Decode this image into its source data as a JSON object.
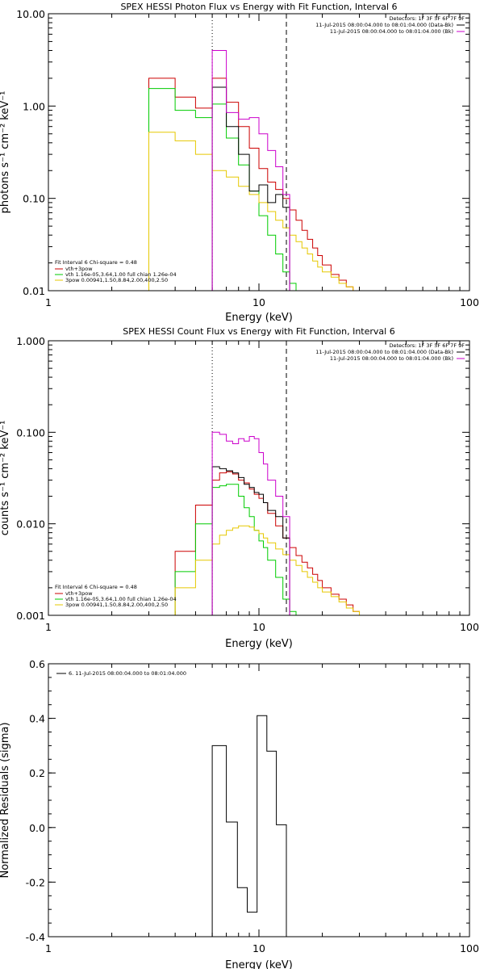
{
  "chart_data": [
    {
      "type": "line",
      "title": "SPEX HESSI Photon Flux vs Energy with Fit Function, Interval 6",
      "xlabel": "Energy (keV)",
      "ylabel": "photons s⁻¹ cm⁻² keV⁻¹",
      "xscale": "log",
      "yscale": "log",
      "xlim": [
        1,
        100
      ],
      "ylim": [
        0.01,
        10
      ],
      "xticks": [
        1,
        10,
        100
      ],
      "xtick_labels": [
        "1",
        "10",
        "100"
      ],
      "yticks": [
        0.01,
        0.1,
        1,
        10
      ],
      "ytick_labels": [
        "0.01",
        "0.10",
        "1.00",
        "10.00"
      ],
      "vlines": [
        {
          "x": 6.0,
          "style": "dotted"
        },
        {
          "x": 13.5,
          "style": "dashed"
        }
      ],
      "legend_right_title": "Detectors: 1F 3F 5F 6F 7F 9F",
      "legend_right": [
        {
          "label": "11-Jul-2015 08:00:04.000 to 08:01:04.000 (Data-Bk)",
          "color": "#000000"
        },
        {
          "label": "11-Jul-2015 08:00:04.000 to 08:01:04.000 (Bk)",
          "color": "#cc00cc"
        }
      ],
      "fit_header": "Fit Interval 6   Chi-square = 0.48",
      "legend_left": [
        {
          "label": "vth+3pow",
          "color": "#cc0000"
        },
        {
          "label": "vth 1.16e-05,3.64,1.00  full chian 1.26e-04",
          "color": "#00cc00"
        },
        {
          "label": "3pow 0.00941,1.50,8.84,2.00,400,2.50",
          "color": "#e6c800"
        }
      ],
      "series": [
        {
          "label": "vth+3pow",
          "color": "#cc0000",
          "edges": [
            3,
            4,
            5,
            6,
            7,
            8,
            9,
            10,
            11,
            12,
            13,
            14,
            15,
            16,
            17,
            18,
            19,
            20,
            22,
            24,
            26,
            28,
            30
          ],
          "values": [
            2.0,
            1.25,
            0.95,
            2.0,
            1.1,
            0.6,
            0.35,
            0.21,
            0.15,
            0.125,
            0.1,
            0.075,
            0.058,
            0.045,
            0.036,
            0.029,
            0.024,
            0.019,
            0.015,
            0.013,
            0.011,
            0.0095
          ]
        },
        {
          "label": "vth",
          "color": "#00cc00",
          "edges": [
            3,
            4,
            5,
            6,
            7,
            8,
            9,
            10,
            11,
            12,
            13,
            14,
            15
          ],
          "values": [
            1.55,
            0.9,
            0.75,
            1.05,
            0.45,
            0.23,
            0.12,
            0.065,
            0.04,
            0.025,
            0.016,
            0.012
          ]
        },
        {
          "label": "3pow",
          "color": "#e6c800",
          "edges": [
            3,
            4,
            5,
            6,
            7,
            8,
            9,
            10,
            11,
            12,
            13,
            14,
            15,
            16,
            17,
            18,
            19,
            20,
            22,
            24,
            26,
            28,
            30
          ],
          "values": [
            0.52,
            0.42,
            0.3,
            0.2,
            0.17,
            0.135,
            0.11,
            0.09,
            0.072,
            0.058,
            0.048,
            0.04,
            0.034,
            0.029,
            0.025,
            0.021,
            0.018,
            0.016,
            0.014,
            0.012,
            0.011,
            0.0095
          ]
        },
        {
          "label": "Data-Bk",
          "color": "#000000",
          "edges": [
            6,
            7,
            8,
            9,
            10,
            11,
            12,
            13,
            14
          ],
          "values": [
            1.6,
            0.6,
            0.3,
            0.12,
            0.14,
            0.09,
            0.11,
            0.08
          ]
        },
        {
          "label": "Bk",
          "color": "#cc00cc",
          "edges": [
            6,
            7,
            8,
            9,
            10,
            11,
            12,
            13,
            14
          ],
          "values": [
            4.0,
            0.85,
            0.72,
            0.75,
            0.5,
            0.33,
            0.22,
            0.11
          ]
        }
      ]
    },
    {
      "type": "line",
      "title": "SPEX HESSI Count Flux vs Energy with Fit Function, Interval 6",
      "xlabel": "Energy (keV)",
      "ylabel": "counts s⁻¹ cm⁻² keV⁻¹",
      "xscale": "log",
      "yscale": "log",
      "xlim": [
        1,
        100
      ],
      "ylim": [
        0.001,
        1
      ],
      "xticks": [
        1,
        10,
        100
      ],
      "xtick_labels": [
        "1",
        "10",
        "100"
      ],
      "yticks": [
        0.001,
        0.01,
        0.1,
        1
      ],
      "ytick_labels": [
        "0.001",
        "0.010",
        "0.100",
        "1.000"
      ],
      "vlines": [
        {
          "x": 6.0,
          "style": "dotted"
        },
        {
          "x": 13.5,
          "style": "dashed"
        }
      ],
      "legend_right_title": "Detectors: 1F 3F 5F 6F 7F 9F",
      "legend_right": [
        {
          "label": "11-Jul-2015 08:00:04.000 to 08:01:04.000 (Data-Bk)",
          "color": "#000000"
        },
        {
          "label": "11-Jul-2015 08:00:04.000 to 08:01:04.000 (Bk)",
          "color": "#cc00cc"
        }
      ],
      "fit_header": "Fit Interval 6   Chi-square = 0.48",
      "legend_left": [
        {
          "label": "vth+3pow",
          "color": "#cc0000"
        },
        {
          "label": "vth 1.16e-05,3.64,1.00  full chian 1.26e-04",
          "color": "#00cc00"
        },
        {
          "label": "3pow 0.00941,1.50,8.84,2.00,400,2.50",
          "color": "#e6c800"
        }
      ],
      "series": [
        {
          "label": "vth+3pow",
          "color": "#cc0000",
          "edges": [
            3,
            3.5,
            4,
            5,
            6,
            6.5,
            7,
            7.5,
            8,
            8.5,
            9,
            9.5,
            10,
            10.5,
            11,
            12,
            13,
            14,
            15,
            16,
            17,
            18,
            19,
            20,
            22,
            24,
            26,
            28,
            30,
            32
          ],
          "values": [
            0.0009,
            0.0009,
            0.005,
            0.016,
            0.03,
            0.036,
            0.037,
            0.035,
            0.03,
            0.028,
            0.024,
            0.021,
            0.019,
            0.017,
            0.013,
            0.0095,
            0.007,
            0.0055,
            0.0045,
            0.0038,
            0.0033,
            0.0028,
            0.0024,
            0.002,
            0.0017,
            0.0015,
            0.0013,
            0.0011,
            0.001
          ]
        },
        {
          "label": "vth",
          "color": "#00cc00",
          "edges": [
            3,
            3.5,
            4,
            5,
            6,
            6.5,
            7,
            7.5,
            8,
            8.5,
            9,
            9.5,
            10,
            10.5,
            11,
            12,
            13,
            14,
            15
          ],
          "values": [
            0.0009,
            0.0009,
            0.003,
            0.01,
            0.025,
            0.026,
            0.027,
            0.027,
            0.02,
            0.015,
            0.012,
            0.0085,
            0.0065,
            0.0055,
            0.004,
            0.0026,
            0.0015,
            0.0011
          ]
        },
        {
          "label": "3pow",
          "color": "#e6c800",
          "edges": [
            3,
            3.5,
            4,
            5,
            6,
            6.5,
            7,
            7.5,
            8,
            8.5,
            9,
            9.5,
            10,
            10.5,
            11,
            12,
            13,
            14,
            15,
            16,
            17,
            18,
            19,
            20,
            22,
            24,
            26,
            28,
            30,
            32,
            35,
            40
          ],
          "values": [
            0.0009,
            0.0009,
            0.002,
            0.004,
            0.006,
            0.0075,
            0.0085,
            0.009,
            0.0095,
            0.0095,
            0.0092,
            0.0085,
            0.0078,
            0.007,
            0.0062,
            0.0053,
            0.0046,
            0.004,
            0.0035,
            0.003,
            0.0026,
            0.0023,
            0.002,
            0.0018,
            0.0016,
            0.0014,
            0.0012,
            0.0011,
            0.001,
            0.0009,
            0.0008
          ]
        },
        {
          "label": "Data-Bk",
          "color": "#000000",
          "edges": [
            6,
            6.5,
            7,
            7.5,
            8,
            8.5,
            9,
            9.5,
            10,
            10.5,
            11,
            12,
            13,
            14
          ],
          "values": [
            0.042,
            0.04,
            0.038,
            0.036,
            0.032,
            0.027,
            0.025,
            0.022,
            0.021,
            0.017,
            0.014,
            0.012,
            0.007
          ]
        },
        {
          "label": "Bk",
          "color": "#cc00cc",
          "edges": [
            6,
            6.5,
            7,
            7.5,
            8,
            8.5,
            9,
            9.5,
            10,
            10.5,
            11,
            12,
            13,
            14
          ],
          "values": [
            0.1,
            0.095,
            0.08,
            0.075,
            0.085,
            0.08,
            0.09,
            0.085,
            0.06,
            0.045,
            0.03,
            0.02,
            0.012
          ]
        }
      ]
    },
    {
      "type": "line",
      "title": "",
      "xlabel": "Energy (keV)",
      "ylabel": "Normalized Residuals (sigma)",
      "xscale": "log",
      "yscale": "linear",
      "xlim": [
        1,
        100
      ],
      "ylim": [
        -0.4,
        0.6
      ],
      "xticks": [
        1,
        10,
        100
      ],
      "xtick_labels": [
        "1",
        "10",
        "100"
      ],
      "yticks": [
        -0.4,
        -0.2,
        0.0,
        0.2,
        0.4,
        0.6
      ],
      "ytick_labels": [
        "-0.4",
        "-0.2",
        "0.0",
        "0.2",
        "0.4",
        "0.6"
      ],
      "legend": [
        {
          "label": "6. 11-Jul-2015 08:00:04.000 to 08:01:04.000",
          "color": "#000000"
        }
      ],
      "series": [
        {
          "label": "residuals",
          "color": "#000000",
          "edges": [
            6.0,
            7.0,
            7.9,
            8.8,
            9.8,
            10.9,
            12.1,
            13.5
          ],
          "values": [
            0.3,
            0.02,
            -0.22,
            -0.31,
            0.41,
            0.28,
            0.01
          ]
        }
      ]
    }
  ]
}
